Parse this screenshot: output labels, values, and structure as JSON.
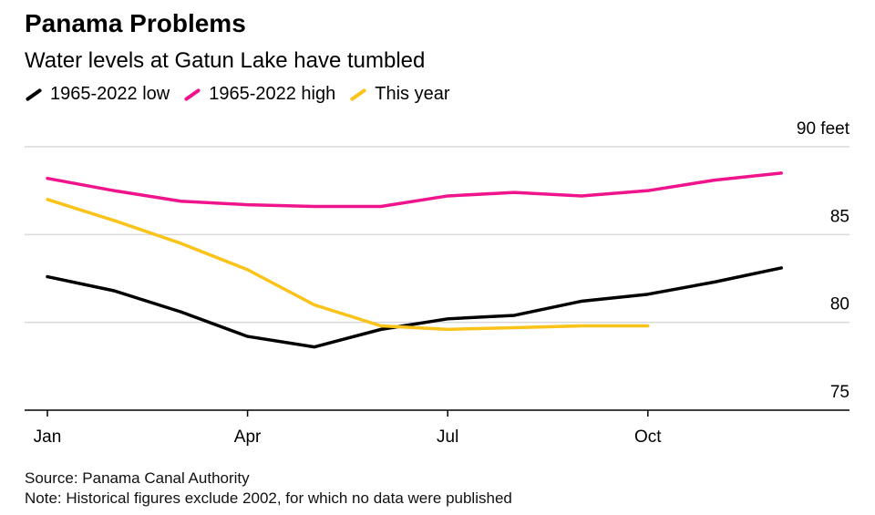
{
  "title": "Panama Problems",
  "subtitle": "Water levels at Gatun Lake have tumbled",
  "footer": {
    "source": "Source: Panama Canal Authority",
    "note": "Note: Historical figures exclude 2002, for which no data were published"
  },
  "colors": {
    "low": "#000000",
    "high": "#f0148c",
    "this_year": "#fac31a",
    "grid": "#d9d9d9",
    "axis": "#000000"
  },
  "chart_data": {
    "type": "line",
    "x": [
      1,
      2,
      3,
      4,
      5,
      6,
      7,
      8,
      9,
      10,
      11,
      12
    ],
    "x_ticks": [
      {
        "x": 1,
        "label": "Jan"
      },
      {
        "x": 4,
        "label": "Apr"
      },
      {
        "x": 7,
        "label": "Jul"
      },
      {
        "x": 10,
        "label": "Oct"
      }
    ],
    "y_ticks": [
      {
        "y": 90,
        "label": "90 feet"
      },
      {
        "y": 85,
        "label": "85"
      },
      {
        "y": 80,
        "label": "80"
      },
      {
        "y": 75,
        "label": "75"
      }
    ],
    "ylim": [
      75,
      90
    ],
    "xlim": [
      1,
      13.1
    ],
    "grid": true,
    "legend_position": "top-left",
    "series": [
      {
        "name": "1965-2022 low",
        "key": "low",
        "values": [
          82.6,
          81.8,
          80.6,
          79.2,
          78.6,
          79.6,
          80.2,
          80.4,
          81.2,
          81.6,
          82.3,
          83.1
        ]
      },
      {
        "name": "1965-2022 high",
        "key": "high",
        "values": [
          88.2,
          87.5,
          86.9,
          86.7,
          86.6,
          86.6,
          87.2,
          87.4,
          87.2,
          87.5,
          88.1,
          88.5
        ]
      },
      {
        "name": "This year",
        "key": "this_year",
        "values": [
          87.0,
          85.8,
          84.5,
          83.0,
          81.0,
          79.8,
          79.6,
          79.7,
          79.8,
          79.8,
          null,
          null
        ]
      }
    ]
  }
}
